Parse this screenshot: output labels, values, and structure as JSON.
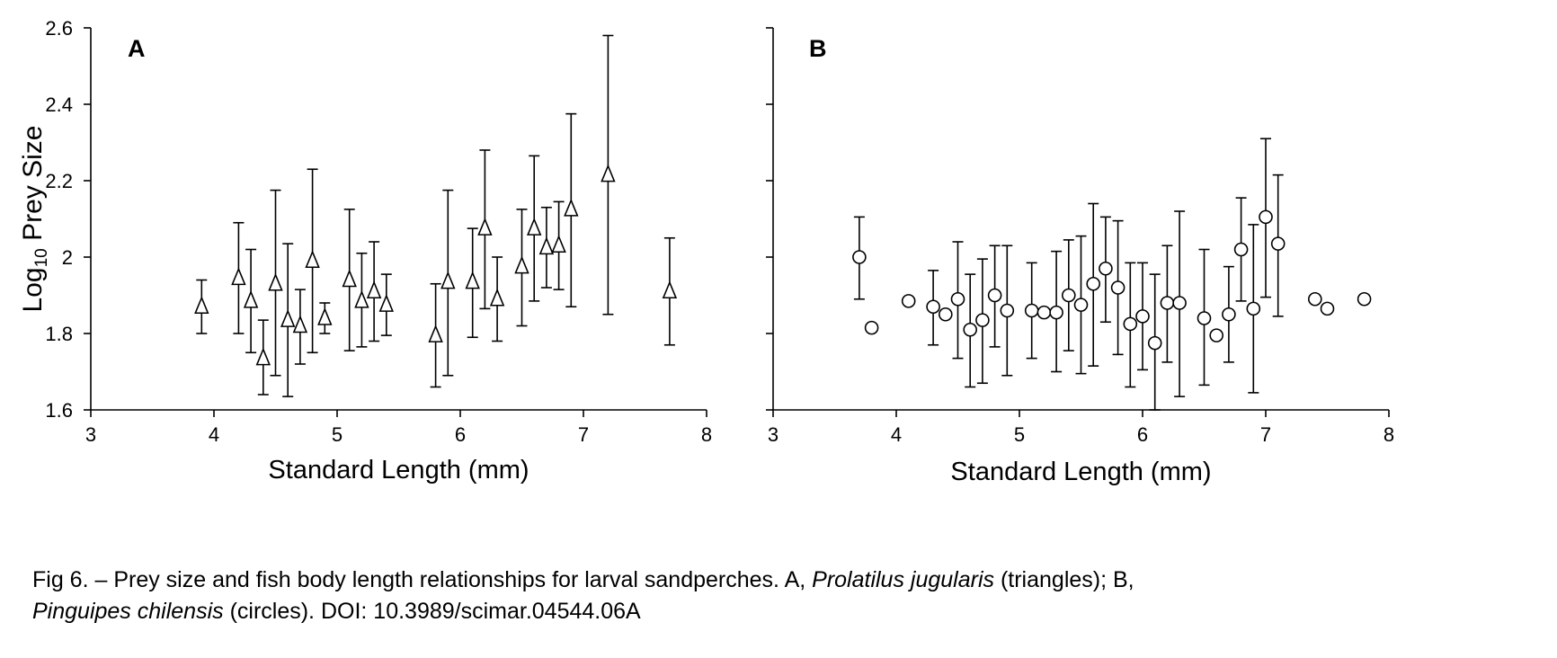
{
  "caption": {
    "prefix": "Fig 6. – Prey size and fish body length relationships for larval sandperches. A, ",
    "species_a": "Prolatilus jugularis",
    "mid": " (triangles); B,",
    "species_b": "Pinguipes chilensis",
    "suffix": " (circles). DOI: 10.3989/scimar.04544.06A"
  },
  "chart_data": [
    {
      "type": "scatter",
      "panel_label": "A",
      "marker": "triangle",
      "xlabel": "Standard Length (mm)",
      "ylabel_base": "Log",
      "ylabel_sub": "10",
      "ylabel_rest": " Prey Size",
      "xlim": [
        3,
        8
      ],
      "ylim": [
        1.6,
        2.6
      ],
      "xticks": [
        "3",
        "4",
        "5",
        "6",
        "7",
        "8"
      ],
      "yticks": [
        "1.6",
        "1.8",
        "2",
        "2.2",
        "2.4",
        "2.6"
      ],
      "show_y_tick_labels": true,
      "grid": false,
      "points": [
        {
          "x": 3.9,
          "y": 1.87,
          "lo": 1.8,
          "hi": 1.94
        },
        {
          "x": 4.2,
          "y": 1.945,
          "lo": 1.8,
          "hi": 2.09
        },
        {
          "x": 4.3,
          "y": 1.885,
          "lo": 1.75,
          "hi": 2.02
        },
        {
          "x": 4.4,
          "y": 1.735,
          "lo": 1.64,
          "hi": 1.835
        },
        {
          "x": 4.5,
          "y": 1.93,
          "lo": 1.69,
          "hi": 2.175
        },
        {
          "x": 4.6,
          "y": 1.835,
          "lo": 1.635,
          "hi": 2.035
        },
        {
          "x": 4.7,
          "y": 1.82,
          "lo": 1.72,
          "hi": 1.915
        },
        {
          "x": 4.8,
          "y": 1.99,
          "lo": 1.75,
          "hi": 2.23
        },
        {
          "x": 4.9,
          "y": 1.84,
          "lo": 1.8,
          "hi": 1.88
        },
        {
          "x": 5.1,
          "y": 1.94,
          "lo": 1.755,
          "hi": 2.125
        },
        {
          "x": 5.2,
          "y": 1.885,
          "lo": 1.765,
          "hi": 2.01
        },
        {
          "x": 5.3,
          "y": 1.91,
          "lo": 1.78,
          "hi": 2.04
        },
        {
          "x": 5.4,
          "y": 1.875,
          "lo": 1.795,
          "hi": 1.955
        },
        {
          "x": 5.8,
          "y": 1.795,
          "lo": 1.66,
          "hi": 1.93
        },
        {
          "x": 5.9,
          "y": 1.935,
          "lo": 1.69,
          "hi": 2.175
        },
        {
          "x": 6.1,
          "y": 1.935,
          "lo": 1.79,
          "hi": 2.075
        },
        {
          "x": 6.2,
          "y": 2.075,
          "lo": 1.865,
          "hi": 2.28
        },
        {
          "x": 6.3,
          "y": 1.89,
          "lo": 1.78,
          "hi": 2.0
        },
        {
          "x": 6.5,
          "y": 1.975,
          "lo": 1.82,
          "hi": 2.125
        },
        {
          "x": 6.6,
          "y": 2.075,
          "lo": 1.885,
          "hi": 2.265
        },
        {
          "x": 6.7,
          "y": 2.025,
          "lo": 1.92,
          "hi": 2.13
        },
        {
          "x": 6.8,
          "y": 2.03,
          "lo": 1.915,
          "hi": 2.145
        },
        {
          "x": 6.9,
          "y": 2.125,
          "lo": 1.87,
          "hi": 2.375
        },
        {
          "x": 7.2,
          "y": 2.215,
          "lo": 1.85,
          "hi": 2.58
        },
        {
          "x": 7.7,
          "y": 1.91,
          "lo": 1.77,
          "hi": 2.05
        }
      ]
    },
    {
      "type": "scatter",
      "panel_label": "B",
      "marker": "circle",
      "xlabel": "Standard Length (mm)",
      "xlim": [
        3,
        8
      ],
      "ylim": [
        1.6,
        2.6
      ],
      "xticks": [
        "3",
        "4",
        "5",
        "6",
        "7",
        "8"
      ],
      "yticks": [
        "1.6",
        "1.8",
        "2",
        "2.2",
        "2.4",
        "2.6"
      ],
      "show_y_tick_labels": false,
      "grid": false,
      "points": [
        {
          "x": 3.7,
          "y": 2.0,
          "lo": 1.89,
          "hi": 2.105
        },
        {
          "x": 3.8,
          "y": 1.815
        },
        {
          "x": 4.1,
          "y": 1.885
        },
        {
          "x": 4.3,
          "y": 1.87,
          "lo": 1.77,
          "hi": 1.965
        },
        {
          "x": 4.4,
          "y": 1.85
        },
        {
          "x": 4.5,
          "y": 1.89,
          "lo": 1.735,
          "hi": 2.04
        },
        {
          "x": 4.6,
          "y": 1.81,
          "lo": 1.66,
          "hi": 1.955
        },
        {
          "x": 4.7,
          "y": 1.835,
          "lo": 1.67,
          "hi": 1.995
        },
        {
          "x": 4.8,
          "y": 1.9,
          "lo": 1.765,
          "hi": 2.03
        },
        {
          "x": 4.9,
          "y": 1.86,
          "lo": 1.69,
          "hi": 2.03
        },
        {
          "x": 5.1,
          "y": 1.86,
          "lo": 1.735,
          "hi": 1.985
        },
        {
          "x": 5.2,
          "y": 1.855
        },
        {
          "x": 5.3,
          "y": 1.855,
          "lo": 1.7,
          "hi": 2.015
        },
        {
          "x": 5.4,
          "y": 1.9,
          "lo": 1.755,
          "hi": 2.045
        },
        {
          "x": 5.5,
          "y": 1.875,
          "lo": 1.695,
          "hi": 2.055
        },
        {
          "x": 5.6,
          "y": 1.93,
          "lo": 1.715,
          "hi": 2.14
        },
        {
          "x": 5.7,
          "y": 1.97,
          "lo": 1.83,
          "hi": 2.105
        },
        {
          "x": 5.8,
          "y": 1.92,
          "lo": 1.745,
          "hi": 2.095
        },
        {
          "x": 5.9,
          "y": 1.825,
          "lo": 1.66,
          "hi": 1.985
        },
        {
          "x": 6.0,
          "y": 1.845,
          "lo": 1.705,
          "hi": 1.985
        },
        {
          "x": 6.1,
          "y": 1.775,
          "lo": 1.6,
          "hi": 1.955
        },
        {
          "x": 6.2,
          "y": 1.88,
          "lo": 1.725,
          "hi": 2.03
        },
        {
          "x": 6.3,
          "y": 1.88,
          "lo": 1.635,
          "hi": 2.12
        },
        {
          "x": 6.5,
          "y": 1.84,
          "lo": 1.665,
          "hi": 2.02
        },
        {
          "x": 6.6,
          "y": 1.795
        },
        {
          "x": 6.7,
          "y": 1.85,
          "lo": 1.725,
          "hi": 1.975
        },
        {
          "x": 6.8,
          "y": 2.02,
          "lo": 1.885,
          "hi": 2.155
        },
        {
          "x": 6.9,
          "y": 1.865,
          "lo": 1.645,
          "hi": 2.085
        },
        {
          "x": 7.0,
          "y": 2.105,
          "lo": 1.895,
          "hi": 2.31
        },
        {
          "x": 7.1,
          "y": 2.035,
          "lo": 1.845,
          "hi": 2.215
        },
        {
          "x": 7.4,
          "y": 1.89
        },
        {
          "x": 7.5,
          "y": 1.865
        },
        {
          "x": 7.8,
          "y": 1.89
        }
      ]
    }
  ]
}
